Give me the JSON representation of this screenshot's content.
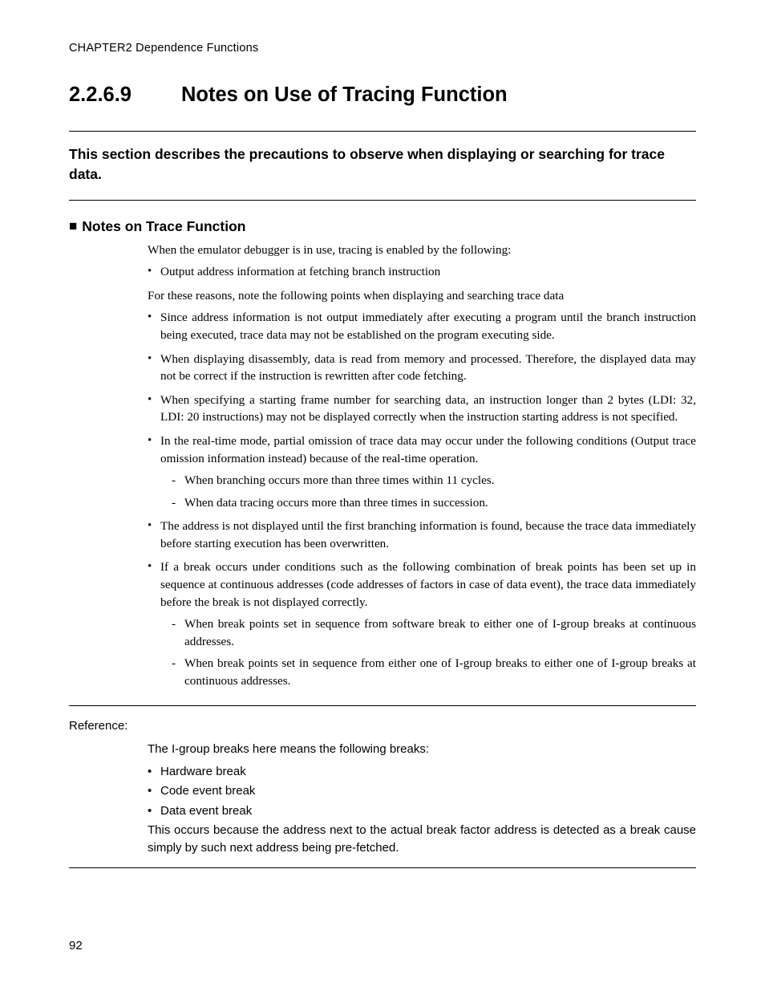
{
  "running_head": "CHAPTER2  Dependence Functions",
  "heading": {
    "number": "2.2.6.9",
    "title": "Notes on Use of Tracing Function"
  },
  "intro": "This section describes the precautions to observe when displaying or searching for trace data.",
  "subheading": "Notes on Trace Function",
  "para1": "When the emulator debugger is in use, tracing is enabled by the following:",
  "first_bullet": "Output address information at fetching branch instruction",
  "para2": "For these reasons, note the following points when displaying and searching trace data",
  "bullets": [
    {
      "text": "Since address information is not output immediately after executing a program until the branch instruction being executed, trace data may not be established on the program executing side."
    },
    {
      "text": "When displaying disassembly, data is read from memory and processed.  Therefore, the displayed data may not be correct if the instruction is rewritten after code fetching."
    },
    {
      "text": "When specifying a starting frame number for searching data, an instruction longer than 2 bytes (LDI: 32, LDI:  20 instructions) may not be displayed correctly when the instruction starting address is not specified."
    },
    {
      "text": "In the real-time mode, partial omission of trace data may occur under the following conditions (Output trace omission information instead) because of the real-time operation.",
      "subs": [
        "When branching occurs more than three times within 11 cycles.",
        "When data tracing occurs more than three times in succession."
      ]
    },
    {
      "text": "The address is not displayed until the first branching information is found, because the trace data immediately before starting execution has been overwritten."
    },
    {
      "text": "If a break occurs under conditions such as the following combination of break points has been set up in sequence at continuous addresses (code addresses of factors in case of data event), the trace data immediately before the break is not displayed correctly.",
      "subs": [
        "When break points set in sequence from software break to either one of I-group breaks at continuous addresses.",
        "When break points set in sequence from either one of I-group breaks to either one of I-group breaks at continuous addresses."
      ]
    }
  ],
  "reference": {
    "label": "Reference:",
    "lead": "The I-group breaks here means the following breaks:",
    "items": [
      "Hardware break",
      "Code event break",
      "Data event break"
    ],
    "tail": "This occurs because the address next to the actual break factor address is detected as a break cause simply by such next address being pre-fetched."
  },
  "page_number": "92"
}
